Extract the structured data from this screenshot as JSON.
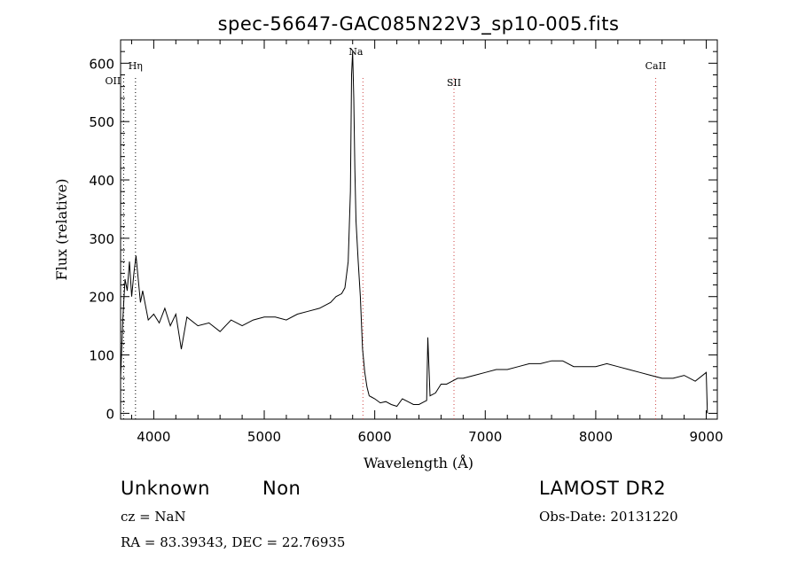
{
  "chart_data": {
    "type": "line",
    "title": "spec-56647-GAC085N22V3_sp10-005.fits",
    "xlabel": "Wavelength (Å)",
    "ylabel": "Flux (relative)",
    "xlim": [
      3700,
      9100
    ],
    "ylim": [
      -10,
      640
    ],
    "xticks": [
      4000,
      5000,
      6000,
      7000,
      8000,
      9000
    ],
    "yticks": [
      0,
      100,
      200,
      300,
      400,
      500,
      600
    ],
    "grid": false,
    "lines": [
      {
        "name": "Hη",
        "x": 3835,
        "color": "#000000"
      },
      {
        "name": "OII",
        "x": 3727,
        "color": "#000000"
      },
      {
        "name": "Na",
        "x": 5893,
        "color": "#cc4444"
      },
      {
        "name": "SII",
        "x": 6717,
        "color": "#cc4444"
      },
      {
        "name": "CaII",
        "x": 8542,
        "color": "#cc4444"
      }
    ],
    "series": [
      {
        "x": [
          3700,
          3720,
          3740,
          3760,
          3780,
          3800,
          3820,
          3840,
          3860,
          3880,
          3900,
          3950,
          4000,
          4050,
          4100,
          4150,
          4200,
          4250,
          4300,
          4400,
          4500,
          4600,
          4700,
          4800,
          4900,
          5000,
          5100,
          5200,
          5300,
          5400,
          5500,
          5600,
          5650,
          5700,
          5730,
          5760,
          5780,
          5790,
          5800,
          5810,
          5820,
          5830,
          5850,
          5870,
          5890,
          5910,
          5930,
          5950,
          5970,
          6000,
          6050,
          6100,
          6150,
          6200,
          6250,
          6300,
          6350,
          6400,
          6450,
          6470,
          6480,
          6500,
          6550,
          6600,
          6650,
          6700,
          6750,
          6800,
          6900,
          7000,
          7100,
          7200,
          7300,
          7400,
          7500,
          7600,
          7700,
          7800,
          7900,
          8000,
          8100,
          8200,
          8300,
          8400,
          8500,
          8600,
          8700,
          8800,
          8900,
          9000,
          9010
        ],
        "y": [
          60,
          160,
          230,
          210,
          260,
          200,
          240,
          270,
          230,
          190,
          210,
          160,
          170,
          155,
          180,
          150,
          170,
          110,
          165,
          150,
          155,
          140,
          160,
          150,
          160,
          165,
          165,
          160,
          170,
          175,
          180,
          190,
          200,
          205,
          215,
          260,
          380,
          580,
          620,
          540,
          420,
          330,
          260,
          200,
          110,
          70,
          45,
          30,
          28,
          25,
          18,
          20,
          15,
          12,
          25,
          20,
          15,
          15,
          20,
          22,
          130,
          30,
          35,
          50,
          50,
          55,
          60,
          60,
          65,
          70,
          75,
          75,
          80,
          85,
          85,
          90,
          90,
          80,
          80,
          80,
          85,
          80,
          75,
          70,
          65,
          60,
          60,
          65,
          55,
          70,
          0
        ]
      }
    ]
  },
  "footer": {
    "class_label": "Unknown",
    "subclass_label": "Non",
    "cz": "cz = NaN",
    "coords": "RA =  83.39343, DEC =  22.76935",
    "survey": "LAMOST DR2",
    "obs_date": "Obs-Date: 20131220"
  }
}
